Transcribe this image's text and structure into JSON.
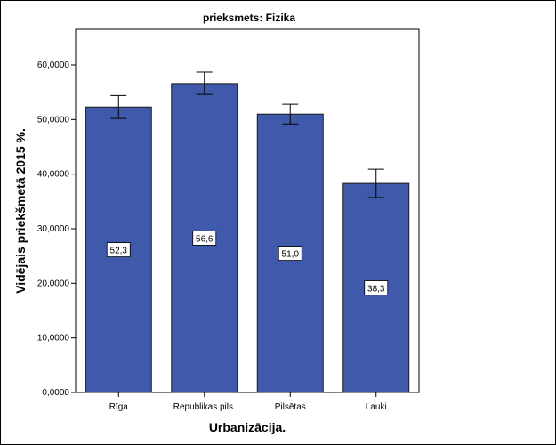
{
  "chart_data": {
    "type": "bar",
    "title": "prieksmets: Fizika",
    "xlabel": "Urbanizācija.",
    "ylabel": "Vidējais priekšmetā 2015 %.",
    "categories": [
      "Rīga",
      "Republikas pils.",
      "Pilsētas",
      "Lauki"
    ],
    "values": [
      52.3,
      56.6,
      51.0,
      38.3
    ],
    "value_labels": [
      "52,3",
      "56,6",
      "51,0",
      "38,3"
    ],
    "error_low": [
      50.2,
      54.6,
      49.2,
      35.7
    ],
    "error_high": [
      54.4,
      58.7,
      52.8,
      40.9
    ],
    "yticks": [
      0,
      10,
      20,
      30,
      40,
      50,
      60
    ],
    "ytick_labels": [
      "0,0000",
      "10,0000",
      "20,0000",
      "30,0000",
      "40,0000",
      "50,0000",
      "60,0000"
    ],
    "ylim": [
      0,
      60.0
    ],
    "grid": false,
    "colors": {
      "bar": "#3f59ab",
      "bar_stroke": "#1a1a1a",
      "error": "#000000"
    }
  }
}
